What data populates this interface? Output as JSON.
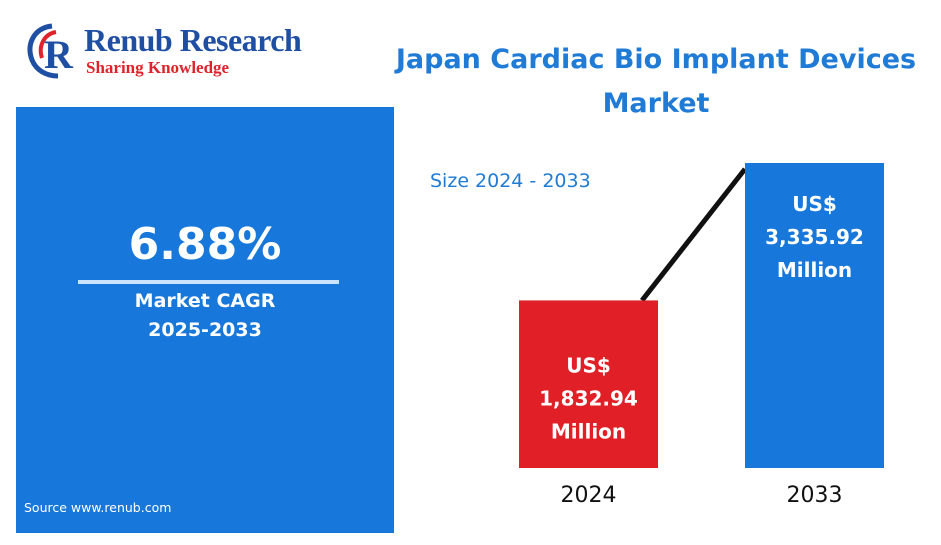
{
  "logo": {
    "name": "Renub Research",
    "tagline": "Sharing Knowledge"
  },
  "title": "Japan Cardiac Bio Implant Devices Market",
  "cagr": {
    "value": "6.88%",
    "label_line1": "Market CAGR",
    "label_line2": "2025-2033"
  },
  "source": "Source  www.renub.com",
  "subtitle": "Size 2024 - 2033",
  "colors": {
    "brand_blue": "#1f4fa3",
    "brand_red": "#e0232a",
    "accent_blue": "#1877da",
    "bar_2024": "#e01f26",
    "bar_2033": "#1877da"
  },
  "chart_data": {
    "type": "bar",
    "categories": [
      "2024",
      "2033"
    ],
    "values": [
      1832.94,
      3335.92
    ],
    "data_labels": [
      [
        "US$",
        "1,832.94",
        "Million"
      ],
      [
        "US$",
        "3,335.92",
        "Million"
      ]
    ],
    "bar_colors": [
      "#e01f26",
      "#1877da"
    ],
    "title": "Japan Cardiac Bio Implant Devices Market",
    "subtitle": "Size 2024 - 2033",
    "xlabel": "",
    "ylabel": "",
    "unit": "US$ Million",
    "trend_line": true,
    "grid": false
  }
}
